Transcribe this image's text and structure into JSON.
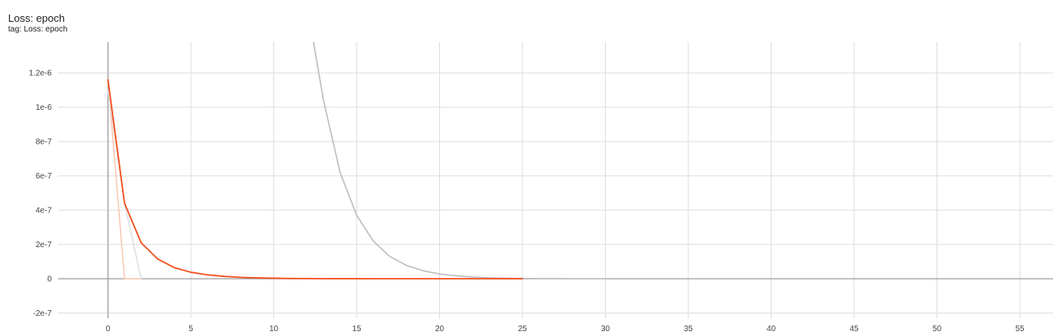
{
  "card": {
    "title": "Loss: epoch",
    "subtitle": "tag: Loss: epoch"
  },
  "chart_data": {
    "type": "line",
    "title": "Loss: epoch",
    "subtitle": "tag: Loss: epoch",
    "xlabel": "",
    "ylabel": "",
    "xlim": [
      -3,
      57
    ],
    "ylim": [
      -2.3e-07,
      1.38e-06
    ],
    "x_ticks": [
      0,
      5,
      10,
      15,
      20,
      25,
      30,
      35,
      40,
      45,
      50,
      55
    ],
    "y_ticks": [
      -2e-07,
      0,
      2e-07,
      4e-07,
      6e-07,
      8e-07,
      1e-06,
      1.2e-06
    ],
    "y_tick_labels": [
      "-2e-7",
      "0",
      "2e-7",
      "4e-7",
      "6e-7",
      "8e-7",
      "1e-6",
      "1.2e-6"
    ],
    "grid": true,
    "series": [
      {
        "color": "#bdbdbd",
        "x": [
          12,
          13,
          14,
          15,
          16,
          17,
          18,
          19,
          20,
          21,
          22,
          23,
          24,
          25,
          26,
          27,
          28,
          29,
          30
        ],
        "y": [
          1.6e-06,
          1.04e-06,
          6.2e-07,
          3.7e-07,
          2.2e-07,
          1.3e-07,
          7.8e-08,
          4.7e-08,
          2.8e-08,
          1.7e-08,
          1e-08,
          6e-09,
          3.6e-09,
          2.2e-09,
          1.3e-09,
          8e-10,
          5e-10,
          3e-10,
          2e-10
        ]
      },
      {
        "color": "#f8c9b6",
        "x": [
          0,
          1,
          2
        ],
        "y": [
          1.16e-06,
          0,
          0
        ]
      },
      {
        "color": "#e0e0e0",
        "x": [
          0,
          1,
          2
        ],
        "y": [
          1.1e-06,
          4.4e-07,
          0
        ]
      },
      {
        "color": "#f4511e",
        "x": [
          0,
          1,
          2,
          3,
          4,
          5,
          6,
          7,
          8,
          9,
          10,
          11,
          12,
          13,
          14,
          15,
          16,
          17,
          18,
          19,
          20,
          21,
          22,
          23,
          24,
          25
        ],
        "y": [
          1.16e-06,
          4.4e-07,
          2.1e-07,
          1.15e-07,
          6.5e-08,
          3.8e-08,
          2.3e-08,
          1.4e-08,
          8.5e-09,
          5.2e-09,
          3.2e-09,
          2e-09,
          1.2e-09,
          8e-10,
          5e-10,
          3e-10,
          2e-10,
          1.2e-10,
          8e-11,
          5e-11,
          3e-11,
          2e-11,
          1.2e-11,
          8e-12,
          5e-12,
          3e-12
        ]
      }
    ]
  }
}
